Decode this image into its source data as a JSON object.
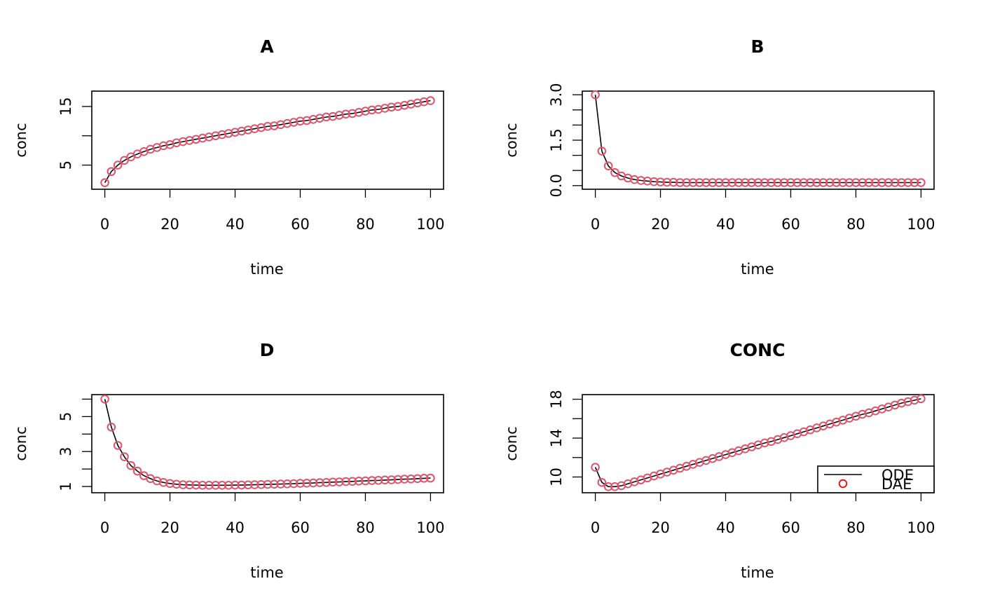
{
  "chart_data": [
    {
      "type": "line",
      "title": "A",
      "xlabel": "time",
      "ylabel": "conc",
      "xlim": [
        0,
        100
      ],
      "ylim": [
        1.5,
        17.0
      ],
      "xticks": [
        0,
        20,
        40,
        60,
        80,
        100
      ],
      "xtick_labels": [
        "0",
        "20",
        "40",
        "60",
        "80",
        "100"
      ],
      "yticks": [
        5,
        10,
        15
      ],
      "ytick_labels": [
        "5",
        "",
        "15"
      ],
      "x": [
        0,
        2,
        4,
        6,
        8,
        10,
        12,
        14,
        16,
        18,
        20,
        22,
        24,
        26,
        28,
        30,
        32,
        34,
        36,
        38,
        40,
        42,
        44,
        46,
        48,
        50,
        52,
        54,
        56,
        58,
        60,
        62,
        64,
        66,
        68,
        70,
        72,
        74,
        76,
        78,
        80,
        82,
        84,
        86,
        88,
        90,
        92,
        94,
        96,
        98,
        100
      ],
      "series": [
        {
          "name": "ODE",
          "style": "line",
          "values": [
            2.0,
            3.9,
            5.0,
            5.8,
            6.4,
            6.9,
            7.3,
            7.7,
            8.0,
            8.3,
            8.5,
            8.8,
            9.0,
            9.2,
            9.4,
            9.6,
            9.8,
            10.0,
            10.2,
            10.4,
            10.6,
            10.8,
            11.0,
            11.2,
            11.4,
            11.6,
            11.7,
            11.9,
            12.1,
            12.3,
            12.5,
            12.6,
            12.8,
            13.0,
            13.2,
            13.3,
            13.5,
            13.7,
            13.8,
            14.0,
            14.2,
            14.4,
            14.5,
            14.7,
            14.9,
            15.0,
            15.2,
            15.4,
            15.6,
            15.8,
            16.0
          ]
        },
        {
          "name": "DAE",
          "style": "points",
          "values": [
            2.0,
            3.9,
            5.0,
            5.8,
            6.4,
            6.9,
            7.3,
            7.7,
            8.0,
            8.3,
            8.5,
            8.8,
            9.0,
            9.2,
            9.4,
            9.6,
            9.8,
            10.0,
            10.2,
            10.4,
            10.6,
            10.8,
            11.0,
            11.2,
            11.4,
            11.6,
            11.7,
            11.9,
            12.1,
            12.3,
            12.5,
            12.6,
            12.8,
            13.0,
            13.2,
            13.3,
            13.5,
            13.7,
            13.8,
            14.0,
            14.2,
            14.4,
            14.5,
            14.7,
            14.9,
            15.0,
            15.2,
            15.4,
            15.6,
            15.8,
            16.0
          ]
        }
      ]
    },
    {
      "type": "line",
      "title": "B",
      "xlabel": "time",
      "ylabel": "conc",
      "xlim": [
        0,
        100
      ],
      "ylim": [
        0.0,
        3.0
      ],
      "xticks": [
        0,
        20,
        40,
        60,
        80,
        100
      ],
      "xtick_labels": [
        "0",
        "20",
        "40",
        "60",
        "80",
        "100"
      ],
      "yticks": [
        0.0,
        0.5,
        1.0,
        1.5,
        2.0,
        2.5,
        3.0
      ],
      "ytick_labels": [
        "0.0",
        "",
        "",
        "1.5",
        "",
        "",
        "3.0"
      ],
      "x": [
        0,
        2,
        4,
        6,
        8,
        10,
        12,
        14,
        16,
        18,
        20,
        22,
        24,
        26,
        28,
        30,
        32,
        34,
        36,
        38,
        40,
        42,
        44,
        46,
        48,
        50,
        52,
        54,
        56,
        58,
        60,
        62,
        64,
        66,
        68,
        70,
        72,
        74,
        76,
        78,
        80,
        82,
        84,
        86,
        88,
        90,
        92,
        94,
        96,
        98,
        100
      ],
      "series": [
        {
          "name": "ODE",
          "style": "line",
          "values": [
            3.0,
            1.14,
            0.65,
            0.43,
            0.32,
            0.25,
            0.2,
            0.17,
            0.15,
            0.13,
            0.12,
            0.11,
            0.11,
            0.1,
            0.1,
            0.1,
            0.1,
            0.1,
            0.1,
            0.1,
            0.1,
            0.1,
            0.1,
            0.1,
            0.1,
            0.1,
            0.1,
            0.1,
            0.1,
            0.1,
            0.1,
            0.1,
            0.1,
            0.1,
            0.1,
            0.1,
            0.1,
            0.1,
            0.1,
            0.1,
            0.1,
            0.1,
            0.1,
            0.1,
            0.1,
            0.1,
            0.1,
            0.1,
            0.1,
            0.1,
            0.1
          ]
        },
        {
          "name": "DAE",
          "style": "points",
          "values": [
            3.0,
            1.14,
            0.65,
            0.43,
            0.32,
            0.25,
            0.2,
            0.17,
            0.15,
            0.13,
            0.12,
            0.11,
            0.11,
            0.1,
            0.1,
            0.1,
            0.1,
            0.1,
            0.1,
            0.1,
            0.1,
            0.1,
            0.1,
            0.1,
            0.1,
            0.1,
            0.1,
            0.1,
            0.1,
            0.1,
            0.1,
            0.1,
            0.1,
            0.1,
            0.1,
            0.1,
            0.1,
            0.1,
            0.1,
            0.1,
            0.1,
            0.1,
            0.1,
            0.1,
            0.1,
            0.1,
            0.1,
            0.1,
            0.1,
            0.1,
            0.1
          ]
        }
      ]
    },
    {
      "type": "line",
      "title": "D",
      "xlabel": "time",
      "ylabel": "conc",
      "xlim": [
        0,
        100
      ],
      "ylim": [
        0.85,
        6.05
      ],
      "xticks": [
        0,
        20,
        40,
        60,
        80,
        100
      ],
      "xtick_labels": [
        "0",
        "20",
        "40",
        "60",
        "80",
        "100"
      ],
      "yticks": [
        1,
        2,
        3,
        4,
        5,
        6
      ],
      "ytick_labels": [
        "1",
        "",
        "3",
        "",
        "5",
        ""
      ],
      "x": [
        0,
        2,
        4,
        6,
        8,
        10,
        12,
        14,
        16,
        18,
        20,
        22,
        24,
        26,
        28,
        30,
        32,
        34,
        36,
        38,
        40,
        42,
        44,
        46,
        48,
        50,
        52,
        54,
        56,
        58,
        60,
        62,
        64,
        66,
        68,
        70,
        72,
        74,
        76,
        78,
        80,
        82,
        84,
        86,
        88,
        90,
        92,
        94,
        96,
        98,
        100
      ],
      "series": [
        {
          "name": "ODE",
          "style": "line",
          "values": [
            6.0,
            4.4,
            3.35,
            2.7,
            2.2,
            1.88,
            1.62,
            1.45,
            1.32,
            1.23,
            1.17,
            1.13,
            1.1,
            1.09,
            1.08,
            1.07,
            1.07,
            1.07,
            1.07,
            1.07,
            1.08,
            1.08,
            1.09,
            1.1,
            1.11,
            1.12,
            1.13,
            1.14,
            1.15,
            1.16,
            1.18,
            1.19,
            1.2,
            1.22,
            1.23,
            1.25,
            1.26,
            1.28,
            1.29,
            1.31,
            1.32,
            1.34,
            1.35,
            1.37,
            1.38,
            1.4,
            1.42,
            1.43,
            1.45,
            1.47,
            1.48
          ]
        },
        {
          "name": "DAE",
          "style": "points",
          "values": [
            6.0,
            4.4,
            3.35,
            2.7,
            2.2,
            1.88,
            1.62,
            1.45,
            1.32,
            1.23,
            1.17,
            1.13,
            1.1,
            1.09,
            1.08,
            1.07,
            1.07,
            1.07,
            1.07,
            1.07,
            1.08,
            1.08,
            1.09,
            1.1,
            1.11,
            1.12,
            1.13,
            1.14,
            1.15,
            1.16,
            1.18,
            1.19,
            1.2,
            1.22,
            1.23,
            1.25,
            1.26,
            1.28,
            1.29,
            1.31,
            1.32,
            1.34,
            1.35,
            1.37,
            1.38,
            1.4,
            1.42,
            1.43,
            1.45,
            1.47,
            1.48
          ]
        }
      ]
    },
    {
      "type": "line",
      "title": "CONC",
      "xlabel": "time",
      "ylabel": "conc",
      "xlim": [
        0,
        100
      ],
      "ylim": [
        8.75,
        18.1
      ],
      "xticks": [
        0,
        20,
        40,
        60,
        80,
        100
      ],
      "xtick_labels": [
        "0",
        "20",
        "40",
        "60",
        "80",
        "100"
      ],
      "yticks": [
        10,
        12,
        14,
        16,
        18
      ],
      "ytick_labels": [
        "10",
        "",
        "14",
        "",
        "18"
      ],
      "legend": {
        "position": "bottom-right",
        "entries": [
          {
            "label": "ODE",
            "symbol": "line",
            "color": "#000000"
          },
          {
            "label": "DAE",
            "symbol": "circle",
            "color": "#ff0000"
          }
        ]
      },
      "x": [
        0,
        2,
        4,
        6,
        8,
        10,
        12,
        14,
        16,
        18,
        20,
        22,
        24,
        26,
        28,
        30,
        32,
        34,
        36,
        38,
        40,
        42,
        44,
        46,
        48,
        50,
        52,
        54,
        56,
        58,
        60,
        62,
        64,
        66,
        68,
        70,
        72,
        74,
        76,
        78,
        80,
        82,
        84,
        86,
        88,
        90,
        92,
        94,
        96,
        98,
        100
      ],
      "series": [
        {
          "name": "ODE",
          "style": "line",
          "color": "#000000",
          "values": [
            11.0,
            9.44,
            9.0,
            9.0,
            9.1,
            9.3,
            9.5,
            9.7,
            9.9,
            10.1,
            10.3,
            10.5,
            10.7,
            10.9,
            11.1,
            11.3,
            11.5,
            11.7,
            11.9,
            12.1,
            12.3,
            12.5,
            12.7,
            12.9,
            13.1,
            13.3,
            13.5,
            13.65,
            13.85,
            14.05,
            14.25,
            14.45,
            14.65,
            14.85,
            15.05,
            15.25,
            15.45,
            15.65,
            15.85,
            16.05,
            16.25,
            16.45,
            16.6,
            16.8,
            17.0,
            17.2,
            17.4,
            17.6,
            17.75,
            17.9,
            18.05
          ]
        },
        {
          "name": "DAE",
          "style": "points",
          "color": "#DF536B",
          "values": [
            11.0,
            9.44,
            9.0,
            9.0,
            9.1,
            9.3,
            9.5,
            9.7,
            9.9,
            10.1,
            10.3,
            10.5,
            10.7,
            10.9,
            11.1,
            11.3,
            11.5,
            11.7,
            11.9,
            12.1,
            12.3,
            12.5,
            12.7,
            12.9,
            13.1,
            13.3,
            13.5,
            13.65,
            13.85,
            14.05,
            14.25,
            14.45,
            14.65,
            14.85,
            15.05,
            15.25,
            15.45,
            15.65,
            15.85,
            16.05,
            16.25,
            16.45,
            16.6,
            16.8,
            17.0,
            17.2,
            17.4,
            17.6,
            17.75,
            17.9,
            18.05
          ]
        }
      ]
    }
  ],
  "colors": {
    "line": "#000000",
    "points": "#DF536B",
    "legend_point": "#ff0000"
  }
}
